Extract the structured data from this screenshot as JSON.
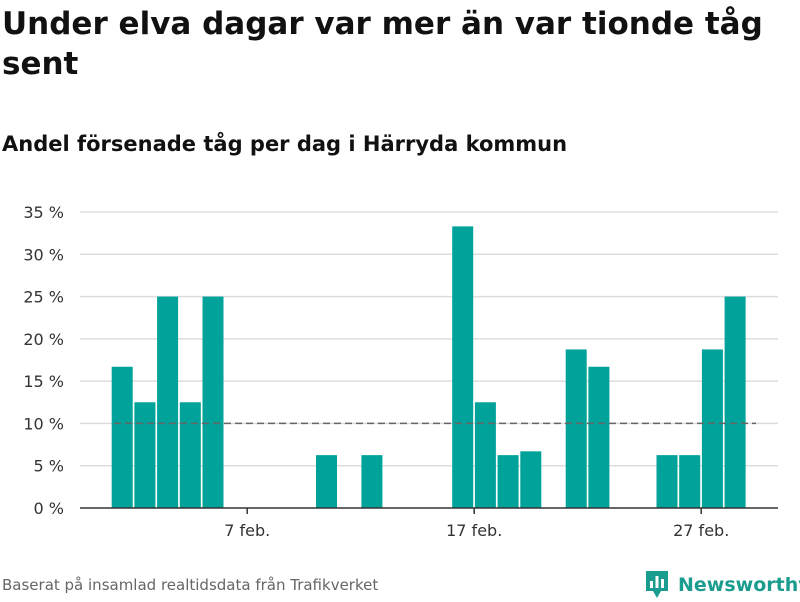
{
  "title": "Under elva dagar var mer än var tionde tåg sent",
  "subtitle": "Andel försenade tåg per dag i Härryda kommun",
  "source": "Baserat på insamlad realtidsdata från Trafikverket",
  "brand": {
    "name": "Newsworthy",
    "icon": "bar-chart-logo-icon",
    "color": "#1a9c8e"
  },
  "colors": {
    "bar": "#00a29a",
    "grid": "#dddddd",
    "axis": "#333333",
    "reference_line": "#666666"
  },
  "chart_data": {
    "type": "bar",
    "title": "Andel försenade tåg per dag i Härryda kommun",
    "x_start_day": 1,
    "x_end_day": 29,
    "x_ticks": [
      {
        "day": 7,
        "label": "7 feb."
      },
      {
        "day": 17,
        "label": "17 feb."
      },
      {
        "day": 27,
        "label": "27 feb."
      }
    ],
    "values": [
      null,
      16.7,
      12.5,
      25,
      12.5,
      25,
      0,
      0,
      0,
      0,
      6.25,
      0,
      6.25,
      0,
      0,
      0,
      33.3,
      12.5,
      6.25,
      6.7,
      0,
      18.75,
      16.7,
      0,
      0,
      6.25,
      6.25,
      18.75,
      25
    ],
    "y_ticks": [
      0,
      5,
      10,
      15,
      20,
      25,
      30,
      35
    ],
    "y_tick_labels": [
      "0 %",
      "5 %",
      "10 %",
      "15 %",
      "20 %",
      "25 %",
      "30 %",
      "35 %"
    ],
    "ylim": [
      0,
      35
    ],
    "reference_line": 10,
    "grid": true
  }
}
